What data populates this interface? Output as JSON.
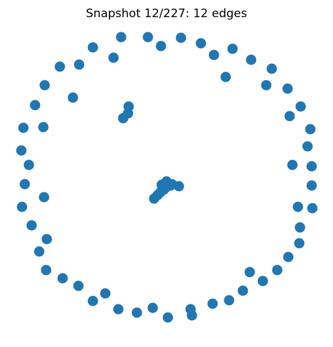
{
  "title": "Snapshot 12/227: 12 edges",
  "node_color": "#1f77b4",
  "edge_color": "#000000",
  "node_count": 72,
  "edge_count": 12
}
